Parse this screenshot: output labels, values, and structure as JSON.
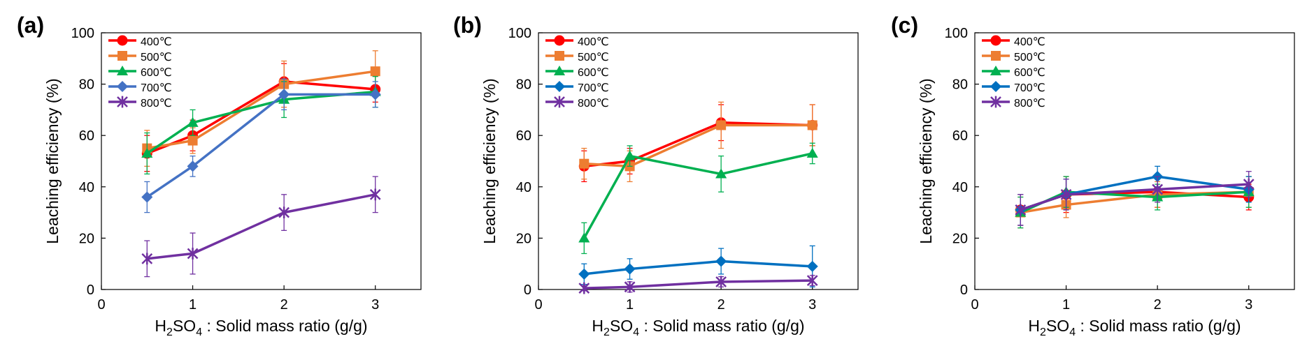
{
  "chart_data": [
    {
      "type": "line",
      "panel_label": "(a)",
      "xlabel": {
        "prefix": "H",
        "sub1": "2",
        "mid": "SO",
        "sub2": "4",
        "suffix": " : Solid mass ratio (g/g)"
      },
      "ylabel": "Leaching efficiency (%)",
      "xlim": [
        0,
        3.5
      ],
      "ylim": [
        0,
        100
      ],
      "xticks": [
        0,
        1,
        2,
        3
      ],
      "yticks": [
        0,
        20,
        40,
        60,
        80,
        100
      ],
      "x": [
        0.5,
        1,
        2,
        3
      ],
      "grid": false,
      "legend": "top-left",
      "series": [
        {
          "name": "400℃",
          "values": [
            53,
            60,
            81,
            78
          ],
          "err": [
            7,
            6,
            7,
            5
          ],
          "color": "#FF0000",
          "marker": "circle"
        },
        {
          "name": "500℃",
          "values": [
            55,
            58,
            80,
            85
          ],
          "err": [
            7,
            5,
            9,
            8
          ],
          "color": "#ED7D31",
          "marker": "square"
        },
        {
          "name": "600℃",
          "values": [
            53,
            65,
            74,
            77
          ],
          "err": [
            8,
            5,
            7,
            6
          ],
          "color": "#00B050",
          "marker": "triangle"
        },
        {
          "name": "700℃",
          "values": [
            36,
            48,
            76,
            76
          ],
          "err": [
            6,
            4,
            6,
            5
          ],
          "color": "#4472C4",
          "marker": "diamond"
        },
        {
          "name": "800℃",
          "values": [
            12,
            14,
            30,
            37
          ],
          "err": [
            7,
            8,
            7,
            7
          ],
          "color": "#7030A0",
          "marker": "star"
        }
      ]
    },
    {
      "type": "line",
      "panel_label": "(b)",
      "xlabel": {
        "prefix": "H",
        "sub1": "2",
        "mid": "SO",
        "sub2": "4",
        "suffix": " : Solid mass ratio (g/g)"
      },
      "ylabel": "Leaching efficiency (%)",
      "xlim": [
        0,
        3.5
      ],
      "ylim": [
        0,
        100
      ],
      "xticks": [
        0,
        1,
        2,
        3
      ],
      "yticks": [
        0,
        20,
        40,
        60,
        80,
        100
      ],
      "x": [
        0.5,
        1,
        2,
        3
      ],
      "grid": false,
      "legend": "top-left",
      "series": [
        {
          "name": "400℃",
          "values": [
            48,
            50,
            65,
            64
          ],
          "err": [
            6,
            5,
            7,
            8
          ],
          "color": "#FF0000",
          "marker": "circle"
        },
        {
          "name": "500℃",
          "values": [
            49,
            48,
            64,
            64
          ],
          "err": [
            6,
            6,
            9,
            8
          ],
          "color": "#ED7D31",
          "marker": "square"
        },
        {
          "name": "600℃",
          "values": [
            20,
            52,
            45,
            53
          ],
          "err": [
            6,
            4,
            7,
            4
          ],
          "color": "#00B050",
          "marker": "triangle"
        },
        {
          "name": "700℃",
          "values": [
            6,
            8,
            11,
            9
          ],
          "err": [
            4,
            4,
            5,
            8
          ],
          "color": "#0070C0",
          "marker": "diamond"
        },
        {
          "name": "800℃",
          "values": [
            0.5,
            1,
            3,
            3.5
          ],
          "err": [
            1,
            2,
            2,
            2
          ],
          "color": "#7030A0",
          "marker": "star"
        }
      ]
    },
    {
      "type": "line",
      "panel_label": "(c)",
      "xlabel": {
        "prefix": "H",
        "sub1": "2",
        "mid": "SO",
        "sub2": "4",
        "suffix": " : Solid mass ratio (g/g)"
      },
      "ylabel": "Leaching efficiency (%)",
      "xlim": [
        0,
        3.5
      ],
      "ylim": [
        0,
        100
      ],
      "xticks": [
        0,
        1,
        2,
        3
      ],
      "yticks": [
        0,
        20,
        40,
        60,
        80,
        100
      ],
      "x": [
        0.5,
        1,
        2,
        3
      ],
      "grid": false,
      "legend": "top-left",
      "series": [
        {
          "name": "400℃",
          "values": [
            31,
            37,
            38,
            36
          ],
          "err": [
            6,
            7,
            6,
            5
          ],
          "color": "#FF0000",
          "marker": "circle"
        },
        {
          "name": "500℃",
          "values": [
            30,
            33,
            37,
            38
          ],
          "err": [
            6,
            5,
            5,
            6
          ],
          "color": "#ED7D31",
          "marker": "square"
        },
        {
          "name": "600℃",
          "values": [
            30,
            38,
            36,
            38
          ],
          "err": [
            6,
            6,
            5,
            6
          ],
          "color": "#00B050",
          "marker": "triangle"
        },
        {
          "name": "700℃",
          "values": [
            31,
            37,
            44,
            39
          ],
          "err": [
            6,
            6,
            4,
            5
          ],
          "color": "#0070C0",
          "marker": "diamond"
        },
        {
          "name": "800℃",
          "values": [
            31,
            37,
            39,
            41
          ],
          "err": [
            6,
            6,
            5,
            5
          ],
          "color": "#7030A0",
          "marker": "star"
        }
      ]
    }
  ]
}
